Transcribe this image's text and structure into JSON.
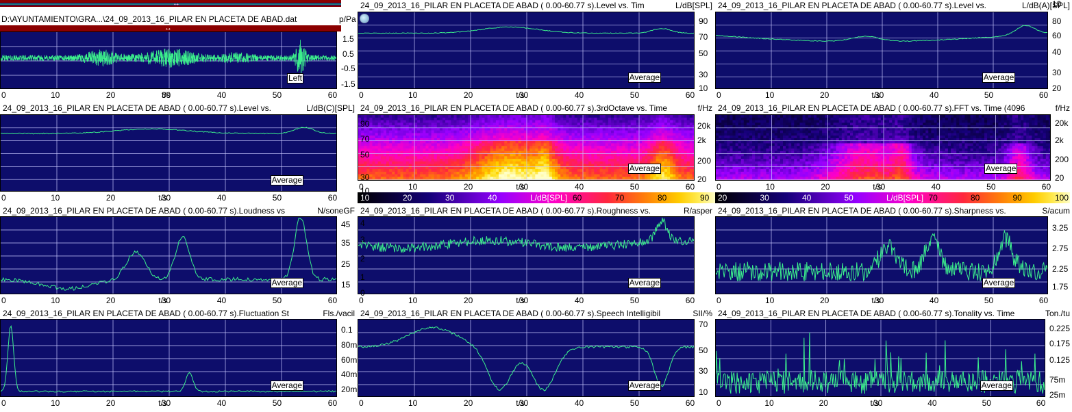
{
  "file_path": "D:\\AYUNTAMIENTO\\GRA...\\24_09_2013_16_PILAR EN  PLACETA DE ABAD.dat",
  "waveform": {
    "unit": "p/Pa",
    "y_ticks": [
      "1.5",
      "0.5",
      "-0.5",
      "-1.5"
    ],
    "x_ticks": [
      "0",
      "10",
      "20",
      "30",
      "40",
      "50",
      "60"
    ],
    "x_label": "t/s",
    "channel_button": "Left",
    "colors": {
      "bar": "#8b0000",
      "trace": "#3cf08c"
    }
  },
  "panels": [
    {
      "id": "level-spl",
      "title": "24_09_2013_16_PILAR EN  PLACETA DE ABAD ( 0.00-60.77 s).Level vs. Tim",
      "unit": "L/dB[SPL]",
      "y_ticks": [
        "90",
        "70",
        "50",
        "30",
        "10"
      ],
      "x_ticks": [
        "0",
        "10",
        "20",
        "30",
        "40",
        "50",
        "60"
      ],
      "x_label": "t/s",
      "badge": "Average"
    },
    {
      "id": "level-a",
      "title": "24_09_2013_16_PILAR EN  PLACETA DE ABAD ( 0.00-60.77 s).Level vs. ",
      "unit": "L/dB(A)[SPL]",
      "y_ticks": [
        "80",
        "60",
        "40",
        "30",
        "20",
        "10"
      ],
      "x_ticks": [
        "0",
        "10",
        "20",
        "30",
        "40",
        "50",
        "60"
      ],
      "x_label": "t/s",
      "badge": "Average"
    },
    {
      "id": "level-c",
      "title": "24_09_2013_16_PILAR EN  PLACETA DE ABAD ( 0.00-60.77 s).Level vs. ",
      "unit": "L/dB(C)[SPL]",
      "y_ticks": [],
      "x_ticks": [
        "0",
        "10",
        "20",
        "30",
        "40",
        "50",
        "60"
      ],
      "x_label": "t/s",
      "badge": "Average"
    },
    {
      "id": "third-octave",
      "title": "24_09_2013_16_PILAR EN  PLACETA DE ABAD ( 0.00-60.77 s).3rdOctave vs. Time",
      "unit": "f/Hz",
      "y_ticks": [
        "90",
        "70",
        "50",
        "30",
        "10"
      ],
      "right_ticks": [
        "20k",
        "2k",
        "200",
        "20"
      ],
      "x_ticks": [
        "0",
        "10",
        "20",
        "30",
        "40",
        "50",
        "60"
      ],
      "x_label": "t/s",
      "badge": "Average",
      "colorbar": {
        "ticks": [
          "10",
          "20",
          "30",
          "40",
          "L/dB[SPL]",
          "60",
          "70",
          "80",
          "90"
        ]
      }
    },
    {
      "id": "fft",
      "title": "24_09_2013_16_PILAR EN  PLACETA DE ABAD ( 0.00-60.77 s).FFT vs. Time (4096",
      "unit": "f/Hz",
      "y_ticks": [
        "20k",
        "2k",
        "200",
        "20"
      ],
      "x_ticks": [
        "0",
        "10",
        "20",
        "30",
        "40",
        "50",
        "60"
      ],
      "x_label": "t/s",
      "badge": "Average",
      "colorbar": {
        "ticks": [
          "20",
          "30",
          "40",
          "50",
          "L/dB[SPL]",
          "70",
          "80",
          "90",
          "100"
        ]
      }
    },
    {
      "id": "loudness",
      "title": "24_09_2013_16_PILAR EN  PLACETA DE ABAD ( 0.00-60.77 s).Loudness vs",
      "unit": "N/soneGF",
      "y_ticks": [
        "45",
        "35",
        "25",
        "15"
      ],
      "x_ticks": [
        "0",
        "10",
        "20",
        "30",
        "40",
        "50",
        "60"
      ],
      "x_label": "t/s",
      "badge": "Average"
    },
    {
      "id": "roughness",
      "title": "24_09_2013_16_PILAR EN  PLACETA DE ABAD ( 0.00-60.77 s).Roughness vs.",
      "unit": "R/asper",
      "y_ticks": [
        "4",
        "3",
        "2",
        "1",
        "0"
      ],
      "x_ticks": [
        "0",
        "10",
        "20",
        "30",
        "40",
        "50",
        "60"
      ],
      "x_label": "t/s",
      "badge": "Average"
    },
    {
      "id": "sharpness",
      "title": "24_09_2013_16_PILAR EN  PLACETA DE ABAD ( 0.00-60.77 s).Sharpness vs. ",
      "unit": "S/acum",
      "y_ticks": [
        "3.25",
        "2.75",
        "2.25",
        "1.75"
      ],
      "x_ticks": [
        "0",
        "10",
        "20",
        "30",
        "40",
        "50",
        "60"
      ],
      "x_label": "t/s",
      "badge": "Average"
    },
    {
      "id": "fluctuation",
      "title": "24_09_2013_16_PILAR EN  PLACETA DE ABAD ( 0.00-60.77 s).Fluctuation St",
      "unit": "Fls./vacil",
      "y_ticks": [
        "0.1",
        "80m",
        "60m",
        "40m",
        "20m"
      ],
      "x_ticks": [
        "0",
        "10",
        "20",
        "30",
        "40",
        "50",
        "60"
      ],
      "x_label": "t/s",
      "badge": "Average"
    },
    {
      "id": "speech",
      "title": "24_09_2013_16_PILAR EN  PLACETA DE ABAD ( 0.00-60.77 s).Speech Intelligibil",
      "unit": "SII/%",
      "y_ticks": [
        "70",
        "50",
        "30",
        "10"
      ],
      "x_ticks": [
        "0",
        "10",
        "20",
        "30",
        "40",
        "50",
        "60"
      ],
      "x_label": "t/s",
      "badge": "Average"
    },
    {
      "id": "tonality",
      "title": "24_09_2013_16_PILAR EN  PLACETA DE ABAD ( 0.00-60.77 s).Tonality vs. Time",
      "unit": "Ton./tu",
      "y_ticks": [
        "0.225",
        "0.175",
        "0.125",
        "75m",
        "25m"
      ],
      "x_ticks": [
        "0",
        "10",
        "20",
        "30",
        "40",
        "50",
        "60"
      ],
      "x_label": "t/s",
      "badge": "Average"
    }
  ],
  "colors": {
    "plot_bg": "#0d0d6b",
    "trace": "#3cf08c",
    "grid": "#c8c8ff"
  }
}
